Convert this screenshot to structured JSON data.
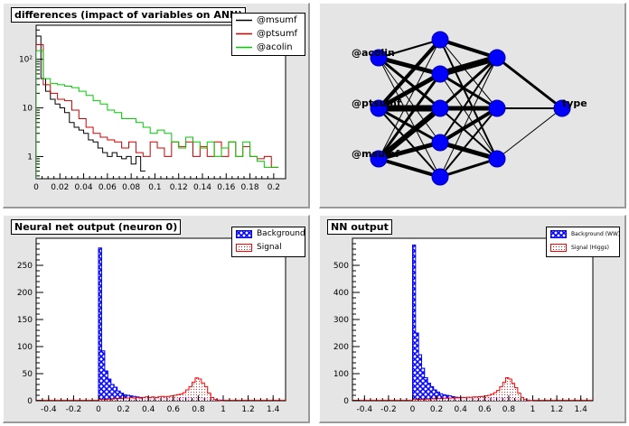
{
  "pads": {
    "differences": {
      "title": "differences (impact of variables on ANN)",
      "legend": [
        {
          "label": "@msumf",
          "color": "#000000"
        },
        {
          "label": "@ptsumf",
          "color": "#d00000"
        },
        {
          "label": "@acolin",
          "color": "#00cc00"
        }
      ],
      "x_ticks": [
        "0",
        "0.02",
        "0.04",
        "0.06",
        "0.08",
        "0.1",
        "0.12",
        "0.14",
        "0.16",
        "0.18",
        "0.2"
      ],
      "y_ticks": [
        "1",
        "10",
        "10²"
      ]
    },
    "network": {
      "inputs": [
        "@acolin",
        "@ptsumf",
        "@msumf"
      ],
      "output": "type"
    },
    "neuron_output": {
      "title": "Neural net output (neuron 0)",
      "legend": [
        "Background",
        "Signal"
      ],
      "x_ticks": [
        "-0.4",
        "-0.2",
        "0",
        "0.2",
        "0.4",
        "0.6",
        "0.8",
        "1",
        "1.2",
        "1.4"
      ],
      "y_ticks": [
        "0",
        "50",
        "100",
        "150",
        "200",
        "250"
      ]
    },
    "nn_output": {
      "title": "NN output",
      "legend": [
        "Background (WW)",
        "Signal (Higgs)"
      ],
      "x_ticks": [
        "-0.4",
        "-0.2",
        "0",
        "0.2",
        "0.4",
        "0.6",
        "0.8",
        "1",
        "1.2",
        "1.4"
      ],
      "y_ticks": [
        "0",
        "100",
        "200",
        "300",
        "400",
        "500"
      ]
    }
  },
  "colors": {
    "pad_background": "#e5e5e5",
    "background_hist": "#0000ff",
    "signal_hist": "#ff0000",
    "neuron": "#0000ff"
  },
  "chart_data": [
    {
      "type": "line",
      "title": "differences (impact of variables on ANN)",
      "log_y": true,
      "xlim": [
        0,
        0.21
      ],
      "ylim": [
        0.35,
        500
      ],
      "series": [
        {
          "name": "@msumf",
          "x": [
            0,
            0.004,
            0.008,
            0.012,
            0.016,
            0.02,
            0.024,
            0.028,
            0.032,
            0.036,
            0.04,
            0.044,
            0.048,
            0.052,
            0.056,
            0.06,
            0.064,
            0.068,
            0.072,
            0.076,
            0.08,
            0.084,
            0.088
          ],
          "y": [
            300,
            40,
            22,
            15,
            12,
            10,
            8,
            5,
            4,
            3.5,
            3,
            2.2,
            2,
            1.5,
            1.2,
            1,
            1.2,
            1,
            0.9,
            1,
            0.7,
            1,
            0.5
          ]
        },
        {
          "name": "@ptsumf",
          "x": [
            0,
            0.006,
            0.012,
            0.018,
            0.024,
            0.03,
            0.036,
            0.042,
            0.048,
            0.054,
            0.06,
            0.066,
            0.072,
            0.078,
            0.084,
            0.09,
            0.096,
            0.102,
            0.108,
            0.114,
            0.12,
            0.126,
            0.132,
            0.138,
            0.144,
            0.15,
            0.156,
            0.162,
            0.168,
            0.174,
            0.18,
            0.186,
            0.192,
            0.198
          ],
          "y": [
            200,
            30,
            20,
            15,
            14,
            9,
            6,
            4,
            3,
            2.5,
            2.2,
            2,
            1.5,
            2,
            1.2,
            1,
            2,
            1.5,
            1,
            2,
            1.6,
            2,
            1,
            1.6,
            1,
            2,
            1,
            2,
            1,
            1.6,
            1,
            0.9,
            1,
            0.6
          ]
        },
        {
          "name": "@acolin",
          "x": [
            0,
            0.006,
            0.012,
            0.018,
            0.024,
            0.03,
            0.036,
            0.042,
            0.048,
            0.054,
            0.06,
            0.066,
            0.072,
            0.078,
            0.084,
            0.09,
            0.096,
            0.102,
            0.108,
            0.114,
            0.12,
            0.126,
            0.132,
            0.138,
            0.144,
            0.15,
            0.156,
            0.162,
            0.168,
            0.174,
            0.18,
            0.186,
            0.192,
            0.198
          ],
          "y": [
            150,
            40,
            32,
            30,
            28,
            26,
            22,
            18,
            14,
            12,
            9,
            8,
            6,
            6,
            5,
            4,
            3,
            3.5,
            3,
            2,
            1.5,
            2.5,
            2,
            1.5,
            2,
            1,
            1.5,
            2,
            1,
            2,
            1,
            0.8,
            0.6,
            0.6
          ]
        }
      ]
    },
    {
      "type": "bar",
      "title": "Neural net output (neuron 0)",
      "xlim": [
        -0.5,
        1.5
      ],
      "ylim": [
        0,
        300
      ],
      "bin_starts": [
        0,
        0.025,
        0.05,
        0.075,
        0.1,
        0.125,
        0.15,
        0.175,
        0.2,
        0.225,
        0.25,
        0.275,
        0.3,
        0.325,
        0.35,
        0.375,
        0.4,
        0.425,
        0.45,
        0.475,
        0.5,
        0.525,
        0.55,
        0.575,
        0.6,
        0.625,
        0.65,
        0.675,
        0.7,
        0.725,
        0.75,
        0.775,
        0.8,
        0.825,
        0.85,
        0.875,
        0.9,
        0.925,
        0.95,
        0.975
      ],
      "bin_width": 0.025,
      "series": [
        {
          "name": "Background",
          "values": [
            282,
            92,
            55,
            40,
            30,
            25,
            18,
            14,
            11,
            10,
            9,
            8,
            7,
            6,
            6,
            5,
            5,
            5,
            4,
            4,
            4,
            5,
            4,
            4,
            5,
            5,
            6,
            6,
            7,
            6,
            6,
            5,
            6,
            5,
            4,
            3,
            2,
            1,
            1,
            1
          ]
        },
        {
          "name": "Signal",
          "values": [
            2,
            2,
            2,
            3,
            3,
            4,
            4,
            4,
            5,
            5,
            6,
            5,
            6,
            5,
            6,
            7,
            6,
            7,
            6,
            7,
            8,
            7,
            8,
            9,
            10,
            11,
            12,
            15,
            20,
            26,
            34,
            42,
            40,
            33,
            26,
            14,
            6,
            2,
            1,
            0
          ]
        }
      ]
    },
    {
      "type": "bar",
      "title": "NN output",
      "xlim": [
        -0.5,
        1.5
      ],
      "ylim": [
        0,
        600
      ],
      "bin_starts": [
        0,
        0.025,
        0.05,
        0.075,
        0.1,
        0.125,
        0.15,
        0.175,
        0.2,
        0.225,
        0.25,
        0.275,
        0.3,
        0.325,
        0.35,
        0.375,
        0.4,
        0.425,
        0.45,
        0.475,
        0.5,
        0.525,
        0.55,
        0.575,
        0.6,
        0.625,
        0.65,
        0.675,
        0.7,
        0.725,
        0.75,
        0.775,
        0.8,
        0.825,
        0.85,
        0.875,
        0.9,
        0.925,
        0.95,
        0.975
      ],
      "bin_width": 0.025,
      "series": [
        {
          "name": "Background (WW)",
          "values": [
            575,
            250,
            170,
            120,
            85,
            65,
            52,
            40,
            32,
            26,
            22,
            20,
            18,
            15,
            13,
            12,
            12,
            11,
            10,
            10,
            9,
            10,
            9,
            9,
            10,
            11,
            12,
            13,
            14,
            12,
            12,
            10,
            11,
            9,
            7,
            5,
            3,
            2,
            1,
            1
          ]
        },
        {
          "name": "Signal (Higgs)",
          "values": [
            4,
            4,
            5,
            5,
            6,
            6,
            7,
            7,
            8,
            8,
            9,
            9,
            10,
            10,
            11,
            11,
            12,
            12,
            13,
            13,
            14,
            14,
            15,
            16,
            18,
            20,
            24,
            30,
            38,
            52,
            68,
            85,
            80,
            64,
            48,
            28,
            12,
            4,
            2,
            0
          ]
        }
      ]
    }
  ]
}
